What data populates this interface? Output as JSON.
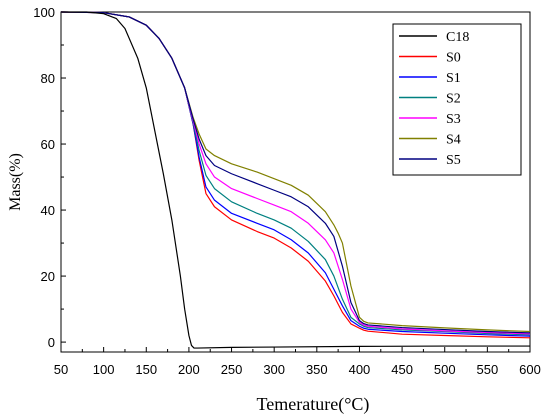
{
  "chart_data": {
    "type": "line",
    "xlabel": "Temerature(°C)",
    "ylabel": "Mass(%)",
    "xlim": [
      50,
      600
    ],
    "ylim": [
      -3,
      100
    ],
    "xticks": [
      50,
      100,
      150,
      200,
      250,
      300,
      350,
      400,
      450,
      500,
      550,
      600
    ],
    "yticks": [
      0,
      20,
      40,
      60,
      80,
      100
    ],
    "legend_position": "top-right",
    "grid": false,
    "series": [
      {
        "name": "C18",
        "color": "#000000",
        "x": [
          50,
          80,
          100,
          115,
          125,
          140,
          150,
          160,
          170,
          180,
          190,
          195,
          200,
          203,
          206,
          210,
          250,
          300,
          400,
          500,
          600
        ],
        "y": [
          100,
          100,
          99.5,
          98,
          95,
          86,
          77,
          64,
          51,
          37,
          20,
          10,
          2,
          -1,
          -1.8,
          -1.8,
          -1.6,
          -1.5,
          -1.3,
          -1.2,
          -1.2
        ]
      },
      {
        "name": "S0",
        "color": "#ff0000",
        "x": [
          50,
          100,
          130,
          150,
          165,
          180,
          195,
          205,
          212,
          220,
          230,
          250,
          280,
          300,
          320,
          340,
          360,
          370,
          380,
          390,
          400,
          405,
          410,
          450,
          500,
          550,
          600
        ],
        "y": [
          100,
          99.8,
          98.5,
          96,
          92,
          86,
          77,
          66,
          55,
          45,
          41,
          37,
          33.5,
          31.5,
          28.5,
          24.5,
          18.5,
          14,
          9,
          5.5,
          4.2,
          3.6,
          3.3,
          2.4,
          2.0,
          1.6,
          1.3
        ]
      },
      {
        "name": "S1",
        "color": "#0000ff",
        "x": [
          50,
          100,
          130,
          150,
          165,
          180,
          195,
          205,
          212,
          220,
          230,
          250,
          280,
          300,
          320,
          340,
          360,
          370,
          380,
          390,
          400,
          405,
          410,
          450,
          500,
          550,
          600
        ],
        "y": [
          100,
          99.8,
          98.5,
          96,
          92,
          86,
          77,
          66,
          56,
          47,
          43,
          39,
          36,
          34,
          31,
          27,
          21,
          16,
          11,
          6.5,
          4.8,
          4.2,
          3.9,
          3.2,
          2.7,
          2.2,
          1.8
        ]
      },
      {
        "name": "S2",
        "color": "#008080",
        "x": [
          50,
          100,
          130,
          150,
          165,
          180,
          195,
          205,
          212,
          220,
          230,
          250,
          280,
          300,
          320,
          340,
          360,
          370,
          380,
          390,
          400,
          405,
          410,
          450,
          500,
          550,
          600
        ],
        "y": [
          100,
          99.8,
          98.5,
          96,
          92,
          86,
          77,
          66.5,
          58,
          50.5,
          46.5,
          42.5,
          39,
          37,
          34.5,
          30.5,
          25,
          20,
          13,
          7.5,
          5.5,
          4.8,
          4.4,
          3.7,
          3.2,
          2.6,
          2.2
        ]
      },
      {
        "name": "S3",
        "color": "#ff00ff",
        "x": [
          50,
          100,
          130,
          150,
          165,
          180,
          195,
          205,
          212,
          220,
          230,
          250,
          280,
          300,
          320,
          340,
          360,
          370,
          380,
          390,
          400,
          405,
          410,
          450,
          500,
          550,
          600
        ],
        "y": [
          100,
          99.8,
          98.5,
          96,
          92,
          86,
          77,
          67,
          60,
          54,
          50,
          46.5,
          43.5,
          41.5,
          39.5,
          36,
          31,
          27,
          19,
          10,
          6,
          5.2,
          4.8,
          4.0,
          3.4,
          2.9,
          2.5
        ]
      },
      {
        "name": "S4",
        "color": "#808000",
        "x": [
          50,
          100,
          130,
          150,
          165,
          180,
          195,
          205,
          212,
          220,
          230,
          250,
          280,
          300,
          320,
          340,
          360,
          370,
          375,
          380,
          390,
          400,
          405,
          410,
          450,
          500,
          550,
          600
        ],
        "y": [
          100,
          99.8,
          98.5,
          96,
          92,
          86,
          77,
          68,
          63,
          58.5,
          56.5,
          54,
          51.5,
          49.5,
          47.5,
          44.5,
          39.5,
          35.5,
          33,
          30,
          17,
          7.5,
          6.3,
          5.8,
          5.0,
          4.3,
          3.7,
          3.2
        ]
      },
      {
        "name": "S5",
        "color": "#000080",
        "x": [
          50,
          100,
          130,
          150,
          165,
          180,
          195,
          205,
          212,
          220,
          230,
          250,
          280,
          300,
          320,
          340,
          360,
          370,
          380,
          390,
          400,
          405,
          410,
          450,
          500,
          550,
          600
        ],
        "y": [
          100,
          99.8,
          98.5,
          96,
          92,
          86,
          77,
          67.5,
          61.5,
          56.5,
          53.5,
          51,
          48,
          46,
          44,
          41,
          36,
          32,
          23,
          12,
          6.5,
          5.6,
          5.2,
          4.4,
          3.8,
          3.2,
          2.8
        ]
      }
    ]
  }
}
